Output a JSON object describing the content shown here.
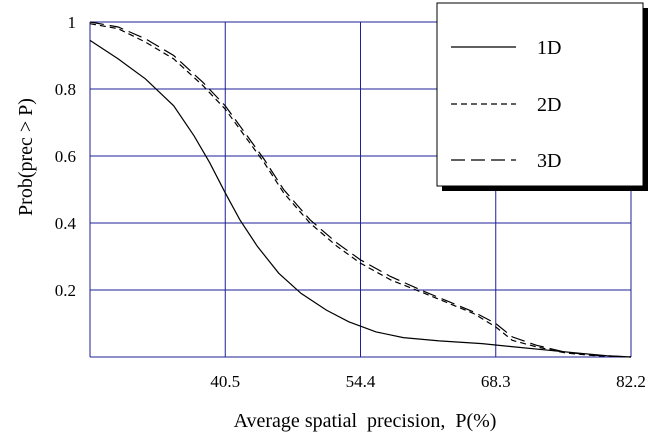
{
  "chart_data": {
    "type": "line",
    "xlabel": "Average spatial  precision,  P(%)",
    "ylabel": "Prob(prec > P)",
    "xlim": [
      26.6,
      82.2
    ],
    "ylim": [
      0,
      1
    ],
    "x_ticks": [
      40.5,
      54.4,
      68.3,
      82.2
    ],
    "x_tick_labels": [
      "40.5",
      "54.4",
      "68.3",
      "82.2"
    ],
    "y_ticks": [
      0.2,
      0.4,
      0.6,
      0.8,
      1.0
    ],
    "y_tick_labels": [
      "0.2",
      "0.4",
      "0.6",
      "0.8",
      "1"
    ],
    "grid": true,
    "legend_position": "top-right",
    "series": [
      {
        "name": "1D",
        "line_style": "solid",
        "x": [
          26.6,
          29.5,
          32.3,
          35.2,
          37.3,
          38.9,
          40.5,
          42.0,
          43.8,
          46.0,
          48.3,
          50.9,
          53.2,
          56.0,
          58.8,
          62.5,
          66.9,
          70.2,
          73.8,
          77.3,
          79.7,
          82.2
        ],
        "y": [
          0.945,
          0.89,
          0.83,
          0.75,
          0.66,
          0.58,
          0.49,
          0.41,
          0.33,
          0.25,
          0.19,
          0.14,
          0.105,
          0.075,
          0.058,
          0.048,
          0.04,
          0.03,
          0.02,
          0.01,
          0.004,
          0.0
        ]
      },
      {
        "name": "2D",
        "line_style": "dashed",
        "x": [
          26.6,
          29.5,
          32.3,
          35.2,
          38.2,
          40.5,
          42.5,
          44.5,
          46.5,
          49.2,
          52.0,
          54.4,
          57.5,
          61.0,
          63.5,
          66.0,
          68.3,
          70.0,
          72.5,
          75.5,
          78.5,
          82.2
        ],
        "y": [
          0.995,
          0.98,
          0.94,
          0.89,
          0.81,
          0.74,
          0.66,
          0.58,
          0.49,
          0.4,
          0.33,
          0.28,
          0.23,
          0.19,
          0.16,
          0.13,
          0.09,
          0.05,
          0.03,
          0.012,
          0.004,
          0.0
        ]
      },
      {
        "name": "3D",
        "line_style": "long-dash",
        "x": [
          26.6,
          29.5,
          32.3,
          35.2,
          38.2,
          40.5,
          42.5,
          44.5,
          46.5,
          49.2,
          52.0,
          54.4,
          57.5,
          61.0,
          63.5,
          66.0,
          68.3,
          70.0,
          72.5,
          75.5,
          78.5,
          82.2
        ],
        "y": [
          1.0,
          0.985,
          0.95,
          0.9,
          0.82,
          0.75,
          0.67,
          0.59,
          0.5,
          0.41,
          0.34,
          0.29,
          0.24,
          0.195,
          0.165,
          0.135,
          0.1,
          0.06,
          0.035,
          0.014,
          0.005,
          0.0
        ]
      }
    ]
  }
}
